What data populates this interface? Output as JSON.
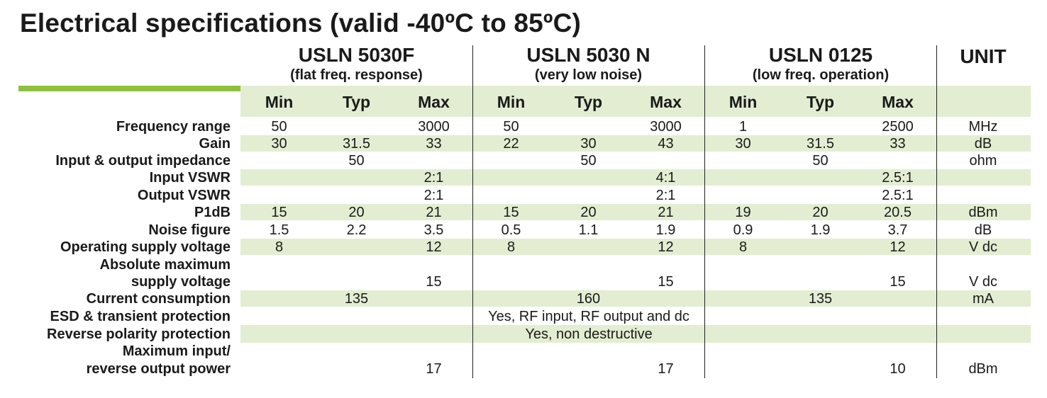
{
  "title": "Electrical specifications (valid -40ºC to 85ºC)",
  "products": [
    {
      "name": "USLN 5030F",
      "sub": "(flat freq. response)"
    },
    {
      "name": "USLN 5030 N",
      "sub": "(very low noise)"
    },
    {
      "name": "USLN 0125",
      "sub": "(low freq. operation)"
    }
  ],
  "unit_header": "UNIT",
  "col_headers": [
    "Min",
    "Typ",
    "Max"
  ],
  "rows": [
    {
      "label": "Frequency range",
      "values": [
        "50",
        "",
        "3000",
        "50",
        "",
        "3000",
        "1",
        "",
        "2500"
      ],
      "unit": "MHz"
    },
    {
      "label": "Gain",
      "values": [
        "30",
        "31.5",
        "33",
        "22",
        "30",
        "43",
        "30",
        "31.5",
        "33"
      ],
      "unit": "dB"
    },
    {
      "label": "Input & output impedance",
      "values": [
        "",
        "50",
        "",
        "",
        "50",
        "",
        "",
        "50",
        ""
      ],
      "unit": "ohm"
    },
    {
      "label": "Input VSWR",
      "values": [
        "",
        "",
        "2:1",
        "",
        "",
        "4:1",
        "",
        "",
        "2.5:1"
      ],
      "unit": ""
    },
    {
      "label": "Output VSWR",
      "values": [
        "",
        "",
        "2:1",
        "",
        "",
        "2:1",
        "",
        "",
        "2.5:1"
      ],
      "unit": ""
    },
    {
      "label": "P1dB",
      "values": [
        "15",
        "20",
        "21",
        "15",
        "20",
        "21",
        "19",
        "20",
        "20.5"
      ],
      "unit": "dBm"
    },
    {
      "label": "Noise figure",
      "values": [
        "1.5",
        "2.2",
        "3.5",
        "0.5",
        "1.1",
        "1.9",
        "0.9",
        "1.9",
        "3.7"
      ],
      "unit": "dB"
    },
    {
      "label": "Operating supply voltage",
      "values": [
        "8",
        "",
        "12",
        "8",
        "",
        "12",
        "8",
        "",
        "12"
      ],
      "unit": "V dc"
    },
    {
      "label_lines": [
        "Absolute maximum",
        "supply voltage"
      ],
      "values": [
        "",
        "",
        "15",
        "",
        "",
        "15",
        "",
        "",
        "15"
      ],
      "unit": "V dc"
    },
    {
      "label": "Current consumption",
      "values": [
        "",
        "135",
        "",
        "",
        "160",
        "",
        "",
        "135",
        ""
      ],
      "unit": "mA"
    },
    {
      "label": "ESD & transient protection",
      "span_value": "Yes, RF input, RF output and dc",
      "unit": ""
    },
    {
      "label": "Reverse polarity protection",
      "span_value": "Yes, non destructive",
      "unit": ""
    },
    {
      "label_lines": [
        "Maximum input/",
        "reverse output power"
      ],
      "values": [
        "",
        "",
        "17",
        "",
        "",
        "17",
        "",
        "",
        "10"
      ],
      "unit": "dBm"
    }
  ]
}
